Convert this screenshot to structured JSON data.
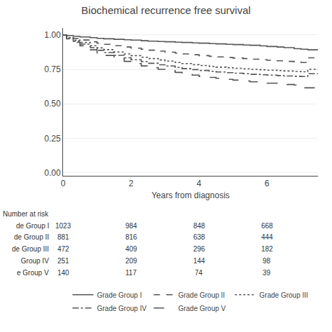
{
  "chart_data": {
    "type": "step",
    "title": "Biochemical recurrence free survival",
    "xlabel": "Years from diagnosis",
    "xlim": [
      0,
      7.5
    ],
    "ylim": [
      -0.02,
      1.05
    ],
    "xticks": [
      0,
      2,
      4,
      6
    ],
    "yticks": [
      {
        "value": 0.0,
        "label": "0.00"
      },
      {
        "value": 0.25,
        "label": "0.25"
      },
      {
        "value": 0.5,
        "label": "0.50"
      },
      {
        "value": 0.75,
        "label": "0.75"
      },
      {
        "value": 1.0,
        "label": "1.00"
      }
    ],
    "grid": "y",
    "legend": "bottom",
    "series": [
      {
        "name": "Grade Group I",
        "color": "#555555",
        "line_style": "solid",
        "x": [
          0,
          0.1,
          0.3,
          0.5,
          0.8,
          1.0,
          1.2,
          1.5,
          1.8,
          2.0,
          2.3,
          2.5,
          2.8,
          3.0,
          3.3,
          3.5,
          3.8,
          4.0,
          4.3,
          4.5,
          4.8,
          5.0,
          5.3,
          5.5,
          5.8,
          6.0,
          6.3,
          6.5,
          6.8,
          7.0,
          7.2,
          7.5
        ],
        "values": [
          1.0,
          0.995,
          0.99,
          0.985,
          0.98,
          0.975,
          0.972,
          0.968,
          0.965,
          0.962,
          0.958,
          0.955,
          0.952,
          0.95,
          0.947,
          0.945,
          0.942,
          0.94,
          0.937,
          0.935,
          0.932,
          0.93,
          0.927,
          0.925,
          0.92,
          0.916,
          0.912,
          0.908,
          0.9,
          0.896,
          0.892,
          0.888
        ]
      },
      {
        "name": "Grade Group II",
        "color": "#555555",
        "line_style": "dash",
        "x": [
          0,
          0.1,
          0.3,
          0.5,
          0.8,
          1.0,
          1.2,
          1.5,
          1.8,
          2.0,
          2.3,
          2.5,
          2.8,
          3.0,
          3.3,
          3.5,
          3.8,
          4.0,
          4.3,
          4.5,
          4.8,
          5.0,
          5.3,
          5.5,
          5.8,
          6.0,
          6.3,
          6.5,
          6.8,
          7.0,
          7.2,
          7.5
        ],
        "values": [
          1.0,
          0.988,
          0.975,
          0.963,
          0.95,
          0.94,
          0.932,
          0.922,
          0.912,
          0.904,
          0.896,
          0.889,
          0.882,
          0.875,
          0.868,
          0.862,
          0.856,
          0.85,
          0.845,
          0.84,
          0.836,
          0.832,
          0.828,
          0.824,
          0.82,
          0.816,
          0.812,
          0.808,
          0.804,
          0.8,
          0.834,
          0.832
        ]
      },
      {
        "name": "Grade Group III",
        "color": "#555555",
        "line_style": "dot",
        "x": [
          0,
          0.1,
          0.3,
          0.5,
          0.8,
          1.0,
          1.2,
          1.5,
          1.8,
          2.0,
          2.3,
          2.5,
          2.8,
          3.0,
          3.3,
          3.5,
          3.8,
          4.0,
          4.3,
          4.5,
          4.8,
          5.0,
          5.3,
          5.5,
          5.8,
          6.0,
          6.3,
          6.5,
          6.8,
          7.0,
          7.2,
          7.5
        ],
        "values": [
          1.0,
          0.98,
          0.962,
          0.945,
          0.922,
          0.906,
          0.893,
          0.876,
          0.862,
          0.85,
          0.838,
          0.828,
          0.818,
          0.81,
          0.8,
          0.792,
          0.784,
          0.778,
          0.772,
          0.766,
          0.762,
          0.758,
          0.754,
          0.75,
          0.747,
          0.744,
          0.741,
          0.738,
          0.735,
          0.732,
          0.75,
          0.75
        ]
      },
      {
        "name": "Grade Group IV",
        "color": "#555555",
        "line_style": "dashdot",
        "x": [
          0,
          0.1,
          0.3,
          0.5,
          0.8,
          1.0,
          1.2,
          1.5,
          1.8,
          2.0,
          2.3,
          2.5,
          2.8,
          3.0,
          3.3,
          3.5,
          3.8,
          4.0,
          4.3,
          4.5,
          4.8,
          5.0,
          5.3,
          5.5,
          5.8,
          6.0,
          6.3,
          6.5,
          6.8,
          7.0,
          7.2,
          7.5
        ],
        "values": [
          1.0,
          0.976,
          0.954,
          0.933,
          0.908,
          0.888,
          0.872,
          0.852,
          0.834,
          0.82,
          0.806,
          0.794,
          0.783,
          0.774,
          0.764,
          0.756,
          0.748,
          0.742,
          0.736,
          0.731,
          0.726,
          0.722,
          0.718,
          0.714,
          0.711,
          0.708,
          0.705,
          0.702,
          0.7,
          0.698,
          0.718,
          0.718
        ]
      },
      {
        "name": "Grade Group V",
        "color": "#555555",
        "line_style": "longdash",
        "x": [
          0,
          0.1,
          0.3,
          0.5,
          0.8,
          1.0,
          1.2,
          1.5,
          1.8,
          2.0,
          2.3,
          2.5,
          2.8,
          3.0,
          3.3,
          3.5,
          3.8,
          4.0,
          4.3,
          4.5,
          4.8,
          5.0,
          5.3,
          5.5,
          5.8,
          6.0,
          6.3,
          6.5,
          6.8,
          6.9,
          7.0,
          7.5
        ],
        "values": [
          1.0,
          0.972,
          0.946,
          0.921,
          0.892,
          0.87,
          0.851,
          0.828,
          0.808,
          0.792,
          0.775,
          0.762,
          0.75,
          0.74,
          0.728,
          0.718,
          0.708,
          0.7,
          0.692,
          0.685,
          0.678,
          0.672,
          0.666,
          0.66,
          0.655,
          0.65,
          0.645,
          0.64,
          0.636,
          0.62,
          0.616,
          0.614
        ]
      }
    ],
    "risk_table": {
      "title": "Number at risk",
      "timepoints": [
        0,
        2,
        4,
        6
      ],
      "rows": [
        {
          "label": "de Group I",
          "values": [
            1023,
            984,
            848,
            668
          ]
        },
        {
          "label": "de Group II",
          "values": [
            881,
            816,
            638,
            444
          ]
        },
        {
          "label": "de Group III",
          "values": [
            472,
            409,
            296,
            182
          ]
        },
        {
          "label": " Group IV",
          "values": [
            251,
            209,
            144,
            98
          ]
        },
        {
          "label": "e Group V",
          "values": [
            140,
            117,
            74,
            39
          ]
        }
      ]
    }
  }
}
